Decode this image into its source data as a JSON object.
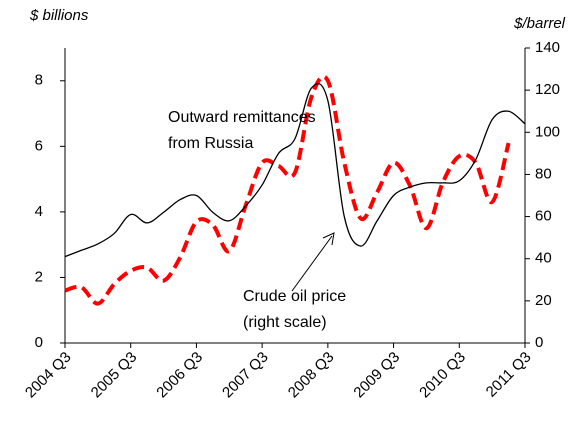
{
  "chart_data": {
    "type": "line",
    "y_label": "$ billions",
    "y2_label": "$/barrel",
    "categories": [
      "2004 Q3",
      null,
      null,
      null,
      "2005 Q3",
      null,
      null,
      null,
      "2006 Q3",
      null,
      null,
      null,
      "2007 Q3",
      null,
      null,
      null,
      "2008 Q3",
      null,
      null,
      null,
      "2009 Q3",
      null,
      null,
      null,
      "2010 Q3",
      null,
      null,
      null,
      "2011 Q3"
    ],
    "series": [
      {
        "color": "#ff0000",
        "dash": true,
        "values": [
          1.6,
          1.7,
          1.2,
          1.8,
          2.2,
          2.3,
          1.9,
          2.6,
          3.7,
          3.6,
          2.8,
          4.2,
          5.5,
          5.4,
          5.2,
          7.5,
          8.0,
          5.5,
          3.8,
          4.6,
          5.5,
          4.8,
          3.5,
          4.9,
          5.7,
          5.5,
          4.3,
          6.1,
          null
        ]
      },
      {
        "color": "#000000",
        "dash": false,
        "axis": "y2",
        "values": [
          41,
          44,
          47,
          52,
          61,
          57,
          62,
          68,
          70,
          62,
          58,
          65,
          75,
          90,
          97,
          121,
          115,
          60,
          46,
          58,
          70,
          74,
          76,
          76,
          77,
          87,
          106,
          110,
          104
        ]
      }
    ],
    "annotations": [
      {
        "lines": [
          "Outward remittances",
          "from Russia"
        ],
        "color": "#ff0000"
      },
      {
        "lines": [
          "Crude oil price",
          "(right scale)"
        ],
        "color": "#000000"
      }
    ],
    "ylim": [
      0,
      9
    ],
    "yticks": [
      0,
      2,
      4,
      6,
      8
    ],
    "y2lim": [
      0,
      140
    ],
    "y2ticks": [
      0,
      20,
      40,
      60,
      80,
      100,
      120,
      140
    ]
  }
}
